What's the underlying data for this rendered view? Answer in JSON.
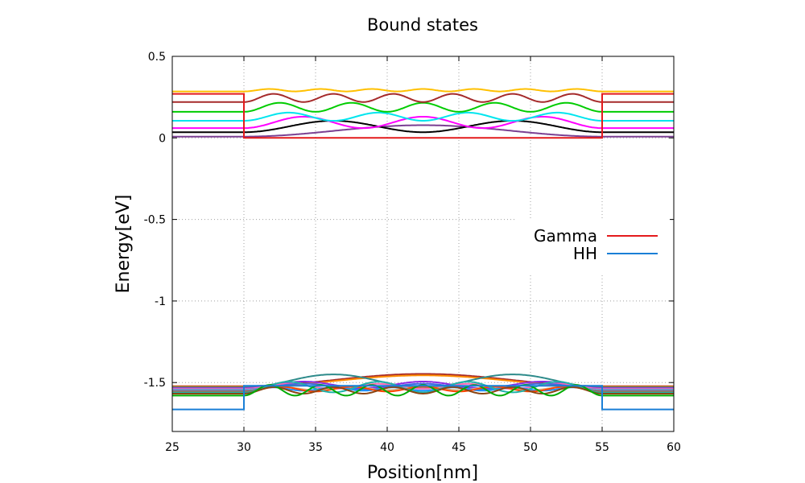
{
  "chart_data": {
    "type": "line",
    "title": "Bound states",
    "xlabel": "Position[nm]",
    "ylabel": "Energy[eV]",
    "xlim": [
      25,
      60
    ],
    "ylim": [
      -1.8,
      0.5
    ],
    "xticks": [
      25,
      30,
      35,
      40,
      45,
      50,
      55,
      60
    ],
    "yticks": [
      -1.5,
      -1,
      -0.5,
      0,
      0.5
    ],
    "xtick_labels": [
      "25",
      "30",
      "35",
      "40",
      "45",
      "50",
      "55",
      "60"
    ],
    "ytick_labels": [
      "-1.5",
      "-1",
      "-0.5",
      "0",
      "0.5"
    ],
    "grid": true,
    "legend_position": "right",
    "well": {
      "left": 30,
      "right": 55
    },
    "series": [
      {
        "name": "Gamma",
        "color": "#e41a1c",
        "x": [
          25,
          30,
          30,
          55,
          55,
          60
        ],
        "y": [
          0.27,
          0.27,
          0.0,
          0.0,
          0.27,
          0.27
        ]
      },
      {
        "name": "HH",
        "color": "#1a7fd6",
        "x": [
          25,
          30,
          30,
          55,
          55,
          60
        ],
        "y": [
          -1.665,
          -1.665,
          -1.52,
          -1.52,
          -1.665,
          -1.665
        ]
      }
    ],
    "electron_states": [
      {
        "color": "#7a3f92",
        "energy": 0.008,
        "n": 1,
        "amp": 0.07
      },
      {
        "color": "#000000",
        "energy": 0.035,
        "n": 2,
        "amp": 0.07
      },
      {
        "color": "#ff00ff",
        "energy": 0.06,
        "n": 3,
        "amp": 0.07
      },
      {
        "color": "#00e5ee",
        "energy": 0.105,
        "n": 4,
        "amp": 0.05
      },
      {
        "color": "#00cc00",
        "energy": 0.16,
        "n": 5,
        "amp": 0.055
      },
      {
        "color": "#a52a2a",
        "energy": 0.22,
        "n": 6,
        "amp": 0.05
      },
      {
        "color": "#ffc000",
        "energy": 0.285,
        "n": 7,
        "amp": 0.015
      }
    ],
    "hole_states": [
      {
        "color": "#a52a2a",
        "energy": -1.522,
        "n": 1,
        "amp": 0.075
      },
      {
        "color": "#ff8c00",
        "energy": -1.526,
        "n": 1,
        "amp": 0.07
      },
      {
        "color": "#2e8b8b",
        "energy": -1.53,
        "n": 2,
        "amp": 0.08
      },
      {
        "color": "#8a2be2",
        "energy": -1.534,
        "n": 3,
        "amp": 0.04
      },
      {
        "color": "#ff69b4",
        "energy": -1.538,
        "n": 4,
        "amp": 0.03
      },
      {
        "color": "#4169e1",
        "energy": -1.542,
        "n": 3,
        "amp": 0.035
      },
      {
        "color": "#d2b48c",
        "energy": -1.546,
        "n": 5,
        "amp": 0.02
      },
      {
        "color": "#1e90ff",
        "energy": -1.55,
        "n": 6,
        "amp": 0.02
      },
      {
        "color": "#ff4500",
        "energy": -1.555,
        "n": 5,
        "amp": 0.03
      },
      {
        "color": "#20b2aa",
        "energy": -1.56,
        "n": 4,
        "amp": 0.065
      },
      {
        "color": "#8b4513",
        "energy": -1.568,
        "n": 6,
        "amp": 0.04
      },
      {
        "color": "#00aa00",
        "energy": -1.58,
        "n": 7,
        "amp": 0.065
      }
    ]
  }
}
